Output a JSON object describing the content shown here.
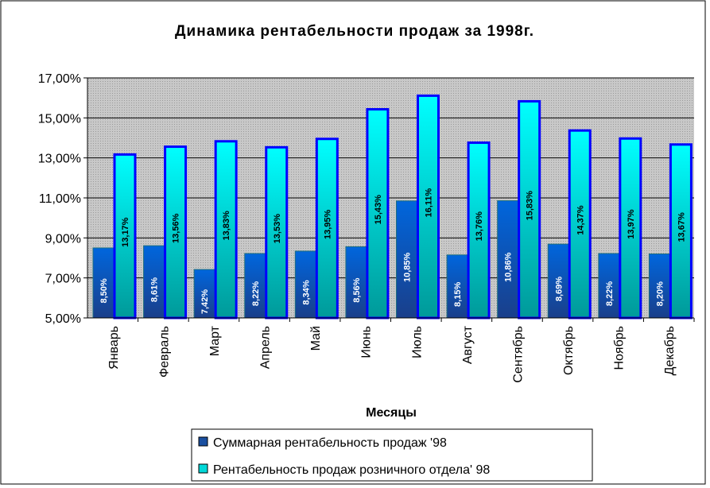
{
  "chart_data": {
    "type": "bar",
    "title": "Динамика рентабельности продаж за 1998г.",
    "xlabel": "Месяцы",
    "ylabel": "",
    "ylim": [
      5,
      17
    ],
    "yticks": [
      "5,00%",
      "7,00%",
      "9,00%",
      "11,00%",
      "13,00%",
      "15,00%",
      "17,00%"
    ],
    "grid": true,
    "legend_position": "bottom",
    "categories": [
      "Январь",
      "Февраль",
      "Март",
      "Апрель",
      "Май",
      "Июнь",
      "Июль",
      "Август",
      "Сентябрь",
      "Октябрь",
      "Ноябрь",
      "Декабрь"
    ],
    "series": [
      {
        "name": "Суммарная рентабельность продаж '98",
        "color": "#0055cc",
        "values": [
          8.5,
          8.61,
          7.42,
          8.22,
          8.34,
          8.56,
          10.85,
          8.15,
          10.86,
          8.69,
          8.22,
          8.2
        ],
        "labels": [
          "8,50%",
          "8,61%",
          "7,42%",
          "8,22%",
          "8,34%",
          "8,56%",
          "10,85%",
          "8,15%",
          "10,86%",
          "8,69%",
          "8,22%",
          "8,20%"
        ]
      },
      {
        "name": "Рентабельность продаж розничного отдела' 98",
        "color": "#00e0e0",
        "values": [
          13.17,
          13.56,
          13.83,
          13.53,
          13.95,
          15.43,
          16.11,
          13.76,
          15.83,
          14.37,
          13.97,
          13.67
        ],
        "labels": [
          "13,17%",
          "13,56%",
          "13,83%",
          "13,53%",
          "13,95%",
          "15,43%",
          "16,11%",
          "13,76%",
          "15,83%",
          "14,37%",
          "13,97%",
          "13,67%"
        ]
      }
    ]
  }
}
